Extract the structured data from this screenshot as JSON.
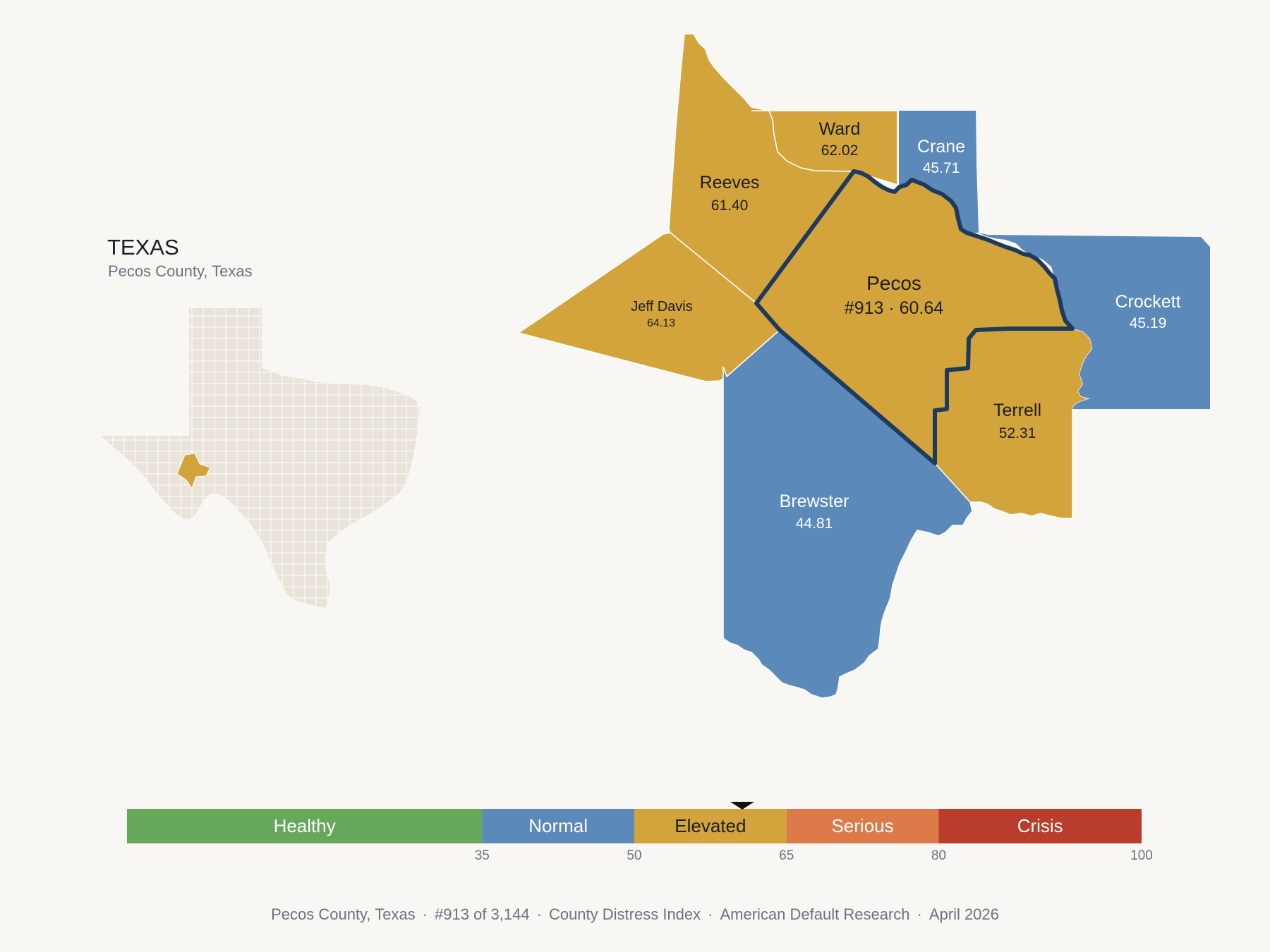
{
  "inset": {
    "state_title": "TEXAS",
    "subtitle": "Pecos County, Texas"
  },
  "colors": {
    "healthy": "#67a75a",
    "normal": "#5b89ba",
    "elevated": "#d3a43c",
    "serious": "#dd7a4a",
    "crisis": "#b93c2c",
    "focus_outline": "#1e3a5c",
    "state_fill": "#e9e3d9"
  },
  "counties": {
    "ward": {
      "name": "Ward",
      "value": "62.02"
    },
    "crane": {
      "name": "Crane",
      "value": "45.71"
    },
    "reeves": {
      "name": "Reeves",
      "value": "61.40"
    },
    "jeff_davis": {
      "name": "Jeff Davis",
      "value": "64.13"
    },
    "pecos": {
      "name": "Pecos",
      "value": "#913 · 60.64"
    },
    "crockett": {
      "name": "Crockett",
      "value": "45.19"
    },
    "terrell": {
      "name": "Terrell",
      "value": "52.31"
    },
    "brewster": {
      "name": "Brewster",
      "value": "44.81"
    }
  },
  "legend": {
    "bands": [
      {
        "label": "Healthy",
        "from": 0,
        "to": 35
      },
      {
        "label": "Normal",
        "from": 35,
        "to": 50
      },
      {
        "label": "Elevated",
        "from": 50,
        "to": 65
      },
      {
        "label": "Serious",
        "from": 65,
        "to": 80
      },
      {
        "label": "Crisis",
        "from": 80,
        "to": 100
      }
    ],
    "ticks": [
      "35",
      "50",
      "65",
      "80",
      "100"
    ],
    "marker_value": 60.64
  },
  "footer": {
    "county": "Pecos County, Texas",
    "rank": "#913 of 3,144",
    "index": "County Distress Index",
    "source": "American Default Research",
    "date": "April 2026"
  }
}
